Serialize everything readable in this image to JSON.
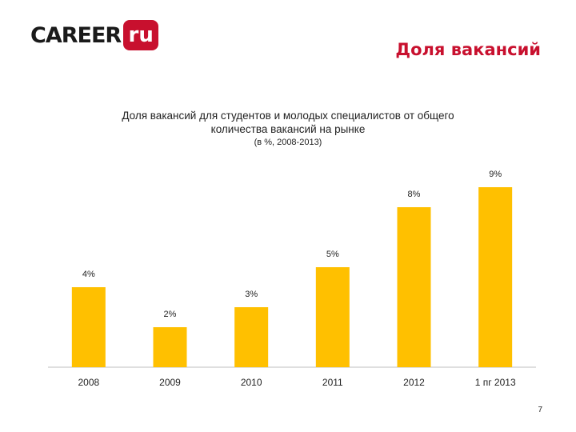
{
  "header": {
    "logo_text": "CAREER",
    "logo_badge": "ru",
    "page_title": "Доля вакансий"
  },
  "colors": {
    "accent": "#c8102e",
    "bar": "#ffc000",
    "axis": "#bfbfbf"
  },
  "chart_data": {
    "type": "bar",
    "title_line1": "Доля вакансий для студентов и молодых специалистов от общего",
    "title_line2": "количества вакансий на рынке",
    "subtitle": "(в %, 2008-2013)",
    "categories": [
      "2008",
      "2009",
      "2010",
      "2011",
      "2012",
      "1 пг 2013"
    ],
    "values": [
      4,
      2,
      3,
      5,
      8,
      9
    ],
    "labels": [
      "4%",
      "2%",
      "3%",
      "5%",
      "8%",
      "9%"
    ],
    "ylim": [
      0,
      9.5
    ],
    "grid": false,
    "legend": "none"
  },
  "footer": {
    "page_number": "7"
  }
}
